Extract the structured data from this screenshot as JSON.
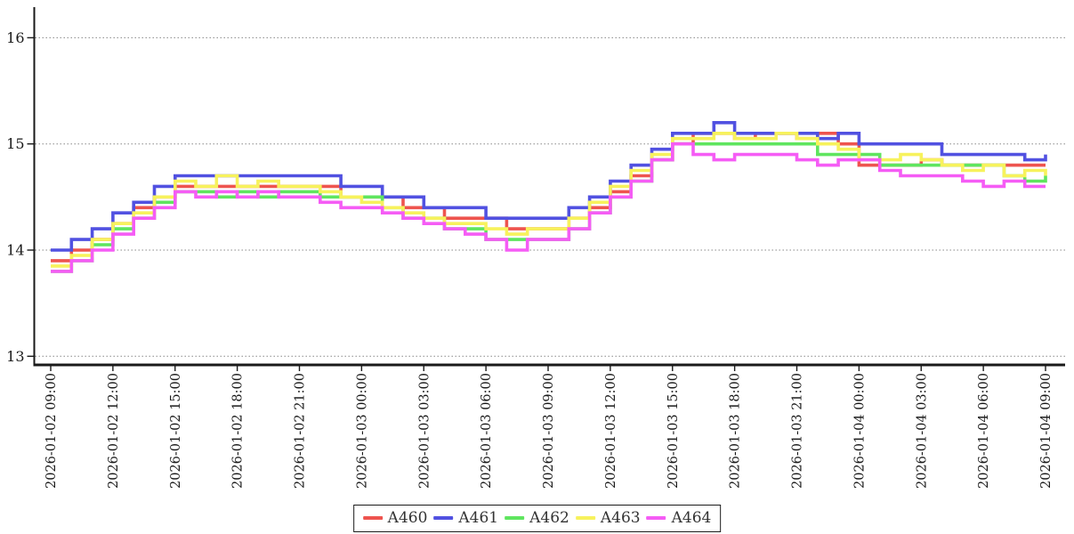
{
  "page": {
    "background": "#ffffff"
  },
  "chart_data": {
    "type": "line",
    "step_interpolation": "step-after",
    "title": "",
    "xlabel": "",
    "ylabel": "",
    "x_axis": {
      "start": "2026-01-02 09:00",
      "end": "2026-01-04 09:00",
      "sample_interval_hours": 1,
      "tick_interval_hours": 3,
      "tick_labels": [
        "2026-01-02 09:00",
        "2026-01-02 12:00",
        "2026-01-02 15:00",
        "2026-01-02 18:00",
        "2026-01-02 21:00",
        "2026-01-03 00:00",
        "2026-01-03 03:00",
        "2026-01-03 06:00",
        "2026-01-03 09:00",
        "2026-01-03 12:00",
        "2026-01-03 15:00",
        "2026-01-03 18:00",
        "2026-01-03 21:00",
        "2026-01-04 00:00",
        "2026-01-04 03:00",
        "2026-01-04 06:00",
        "2026-01-04 09:00"
      ]
    },
    "y_axis": {
      "ticks": [
        13,
        14,
        15,
        16
      ],
      "range": [
        12.9,
        16.3
      ],
      "gridlines": "dotted"
    },
    "legend": {
      "position": "bottom-center",
      "entries": [
        "A460",
        "A461",
        "A462",
        "A463",
        "A464"
      ]
    },
    "series": [
      {
        "name": "A460",
        "color": "#ee544f",
        "values": [
          13.9,
          14.0,
          14.1,
          14.25,
          14.4,
          14.5,
          14.6,
          14.6,
          14.6,
          14.6,
          14.6,
          14.6,
          14.6,
          14.6,
          14.5,
          14.5,
          14.5,
          14.4,
          14.4,
          14.3,
          14.3,
          14.3,
          14.2,
          14.2,
          14.2,
          14.3,
          14.4,
          14.55,
          14.7,
          14.85,
          15.0,
          15.1,
          15.1,
          15.05,
          15.1,
          15.1,
          15.05,
          15.1,
          15.0,
          14.8,
          14.8,
          14.8,
          14.85,
          14.8,
          14.8,
          14.8,
          14.8,
          14.8,
          14.8
        ]
      },
      {
        "name": "A461",
        "color": "#5151e1",
        "values": [
          14.0,
          14.1,
          14.2,
          14.35,
          14.45,
          14.6,
          14.7,
          14.7,
          14.7,
          14.7,
          14.7,
          14.7,
          14.7,
          14.7,
          14.6,
          14.6,
          14.5,
          14.5,
          14.4,
          14.4,
          14.4,
          14.3,
          14.3,
          14.3,
          14.3,
          14.4,
          14.5,
          14.65,
          14.8,
          14.95,
          15.1,
          15.1,
          15.2,
          15.1,
          15.1,
          15.1,
          15.1,
          15.05,
          15.1,
          15.0,
          15.0,
          15.0,
          15.0,
          14.9,
          14.9,
          14.9,
          14.9,
          14.85,
          14.9
        ]
      },
      {
        "name": "A462",
        "color": "#5fe55f",
        "values": [
          13.8,
          13.9,
          14.05,
          14.2,
          14.3,
          14.45,
          14.55,
          14.55,
          14.5,
          14.55,
          14.5,
          14.55,
          14.55,
          14.5,
          14.5,
          14.5,
          14.4,
          14.3,
          14.3,
          14.2,
          14.2,
          14.1,
          14.1,
          14.1,
          14.1,
          14.2,
          14.35,
          14.5,
          14.65,
          14.85,
          15.0,
          15.0,
          15.0,
          15.0,
          15.0,
          15.0,
          15.0,
          14.9,
          14.9,
          14.9,
          14.8,
          14.8,
          14.8,
          14.8,
          14.8,
          14.8,
          14.7,
          14.65,
          14.7
        ]
      },
      {
        "name": "A463",
        "color": "#f7f25c",
        "values": [
          13.85,
          13.95,
          14.1,
          14.25,
          14.35,
          14.5,
          14.65,
          14.6,
          14.7,
          14.6,
          14.65,
          14.6,
          14.6,
          14.55,
          14.5,
          14.45,
          14.4,
          14.35,
          14.3,
          14.25,
          14.25,
          14.2,
          14.15,
          14.2,
          14.2,
          14.3,
          14.45,
          14.6,
          14.75,
          14.9,
          15.05,
          15.05,
          15.1,
          15.05,
          15.05,
          15.1,
          15.05,
          15.0,
          14.95,
          14.85,
          14.85,
          14.9,
          14.85,
          14.8,
          14.75,
          14.8,
          14.7,
          14.75,
          14.7
        ]
      },
      {
        "name": "A464",
        "color": "#f55cf5",
        "values": [
          13.8,
          13.9,
          14.0,
          14.15,
          14.3,
          14.4,
          14.55,
          14.5,
          14.55,
          14.5,
          14.55,
          14.5,
          14.5,
          14.45,
          14.4,
          14.4,
          14.35,
          14.3,
          14.25,
          14.2,
          14.15,
          14.1,
          14.0,
          14.1,
          14.1,
          14.2,
          14.35,
          14.5,
          14.65,
          14.85,
          15.0,
          14.9,
          14.85,
          14.9,
          14.9,
          14.9,
          14.85,
          14.8,
          14.85,
          14.85,
          14.75,
          14.7,
          14.7,
          14.7,
          14.65,
          14.6,
          14.65,
          14.6,
          14.6
        ]
      }
    ],
    "draw_order": [
      "A460",
      "A461",
      "A462",
      "A463",
      "A464"
    ],
    "line_width": 3.6,
    "axis_color": "#1a1a1a",
    "gridline_color": "#888888",
    "tick_label_color": "#1a1a1a"
  }
}
